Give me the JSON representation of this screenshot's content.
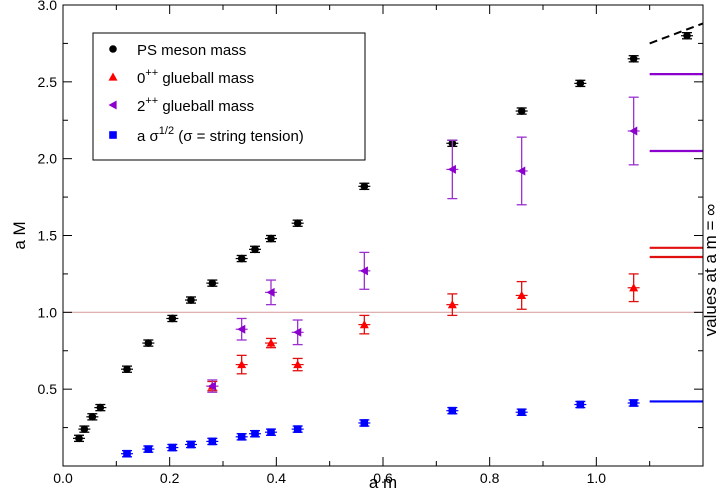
{
  "chart_data": {
    "type": "scatter",
    "xlabel": "a m",
    "ylabel": "a M",
    "right_label": "values at  a m = ∞",
    "xlim": [
      0,
      1.2
    ],
    "ylim": [
      0,
      3.0
    ],
    "xticks": [
      0.0,
      0.2,
      0.4,
      0.6,
      0.8,
      1.0
    ],
    "xtick_labels": [
      "0.0",
      "0.2",
      "0.4",
      "0.6",
      "0.8",
      "1.0"
    ],
    "yticks": [
      0.5,
      1.0,
      1.5,
      2.0,
      2.5,
      3.0
    ],
    "ytick_labels": [
      "0.5",
      "1.0",
      "1.5",
      "2.0",
      "2.5",
      "3.0"
    ],
    "grid": false,
    "legend_position": "top-left",
    "reference_line": {
      "y": 1.0,
      "color": "#d9a6a6"
    },
    "series": [
      {
        "name": "PS meson mass",
        "marker": "circle",
        "color": "#000000",
        "points": [
          {
            "x": 0.03,
            "y": 0.18,
            "err": 0.02
          },
          {
            "x": 0.04,
            "y": 0.24,
            "err": 0.02
          },
          {
            "x": 0.055,
            "y": 0.32,
            "err": 0.02
          },
          {
            "x": 0.07,
            "y": 0.38,
            "err": 0.02
          },
          {
            "x": 0.12,
            "y": 0.63,
            "err": 0.02
          },
          {
            "x": 0.16,
            "y": 0.8,
            "err": 0.02
          },
          {
            "x": 0.205,
            "y": 0.96,
            "err": 0.02
          },
          {
            "x": 0.24,
            "y": 1.08,
            "err": 0.02
          },
          {
            "x": 0.28,
            "y": 1.19,
            "err": 0.02
          },
          {
            "x": 0.335,
            "y": 1.35,
            "err": 0.02
          },
          {
            "x": 0.36,
            "y": 1.41,
            "err": 0.02
          },
          {
            "x": 0.39,
            "y": 1.48,
            "err": 0.02
          },
          {
            "x": 0.44,
            "y": 1.58,
            "err": 0.02
          },
          {
            "x": 0.565,
            "y": 1.82,
            "err": 0.02
          },
          {
            "x": 0.73,
            "y": 2.1,
            "err": 0.02
          },
          {
            "x": 0.86,
            "y": 2.31,
            "err": 0.02
          },
          {
            "x": 0.97,
            "y": 2.49,
            "err": 0.02
          },
          {
            "x": 1.07,
            "y": 2.65,
            "err": 0.02
          },
          {
            "x": 1.17,
            "y": 2.8,
            "err": 0.02
          }
        ]
      },
      {
        "name": "0++ glueball mass",
        "marker": "triangle-up",
        "color": "#ff0000",
        "errcolor": "#e01010",
        "points": [
          {
            "x": 0.28,
            "y": 0.52,
            "err": 0.03
          },
          {
            "x": 0.335,
            "y": 0.66,
            "err": 0.06
          },
          {
            "x": 0.39,
            "y": 0.8,
            "err": 0.03
          },
          {
            "x": 0.44,
            "y": 0.66,
            "err": 0.04
          },
          {
            "x": 0.565,
            "y": 0.92,
            "err": 0.06
          },
          {
            "x": 0.73,
            "y": 1.05,
            "err": 0.07
          },
          {
            "x": 0.86,
            "y": 1.11,
            "err": 0.09
          },
          {
            "x": 1.07,
            "y": 1.16,
            "err": 0.09
          }
        ]
      },
      {
        "name": "2++ glueball mass",
        "marker": "triangle-left",
        "color": "#8b00cc",
        "errcolor": "#9b30d0",
        "points": [
          {
            "x": 0.28,
            "y": 0.52,
            "err": 0.04
          },
          {
            "x": 0.335,
            "y": 0.89,
            "err": 0.07
          },
          {
            "x": 0.39,
            "y": 1.13,
            "err": 0.08
          },
          {
            "x": 0.44,
            "y": 0.87,
            "err": 0.08
          },
          {
            "x": 0.565,
            "y": 1.27,
            "err": 0.12
          },
          {
            "x": 0.73,
            "y": 1.93,
            "err": 0.19
          },
          {
            "x": 0.86,
            "y": 1.92,
            "err": 0.22
          },
          {
            "x": 1.07,
            "y": 2.18,
            "err": 0.22
          }
        ]
      },
      {
        "name": "a σ^1/2 (σ = string tension)",
        "marker": "square",
        "color": "#0000ff",
        "points": [
          {
            "x": 0.12,
            "y": 0.08,
            "err": 0.02
          },
          {
            "x": 0.16,
            "y": 0.11,
            "err": 0.02
          },
          {
            "x": 0.205,
            "y": 0.12,
            "err": 0.02
          },
          {
            "x": 0.24,
            "y": 0.14,
            "err": 0.02
          },
          {
            "x": 0.28,
            "y": 0.16,
            "err": 0.02
          },
          {
            "x": 0.335,
            "y": 0.19,
            "err": 0.02
          },
          {
            "x": 0.36,
            "y": 0.21,
            "err": 0.02
          },
          {
            "x": 0.39,
            "y": 0.22,
            "err": 0.02
          },
          {
            "x": 0.44,
            "y": 0.24,
            "err": 0.02
          },
          {
            "x": 0.565,
            "y": 0.28,
            "err": 0.02
          },
          {
            "x": 0.73,
            "y": 0.36,
            "err": 0.02
          },
          {
            "x": 0.86,
            "y": 0.35,
            "err": 0.02
          },
          {
            "x": 0.97,
            "y": 0.4,
            "err": 0.02
          },
          {
            "x": 1.07,
            "y": 0.41,
            "err": 0.02
          }
        ]
      }
    ],
    "extrapolation": {
      "color": "#000000",
      "style": "dashed",
      "x": [
        1.1,
        1.2
      ],
      "y": [
        2.75,
        2.88
      ]
    },
    "infinite_mass_values": [
      {
        "series": "2++ glueball mass",
        "y": 2.55,
        "color": "#8b00cc"
      },
      {
        "series": "2++ glueball mass",
        "y": 2.05,
        "color": "#8b00cc"
      },
      {
        "series": "0++ glueball mass",
        "y": 1.42,
        "color": "#e01010"
      },
      {
        "series": "0++ glueball mass",
        "y": 1.36,
        "color": "#e01010"
      },
      {
        "series": "a σ^1/2 (σ = string tension)",
        "y": 0.42,
        "color": "#0000ff"
      }
    ],
    "legend": [
      {
        "label": "PS meson mass",
        "marker": "circle",
        "color": "#000000"
      },
      {
        "base": "0",
        "sup": "++",
        "rest": " glueball mass",
        "marker": "triangle-up",
        "color": "#ff0000"
      },
      {
        "base": "2",
        "sup": "++",
        "rest": " glueball mass",
        "marker": "triangle-left",
        "color": "#8b00cc"
      },
      {
        "base": "a σ",
        "sup": "1/2",
        "rest": " (σ = string tension)",
        "marker": "square",
        "color": "#0000ff"
      }
    ]
  }
}
